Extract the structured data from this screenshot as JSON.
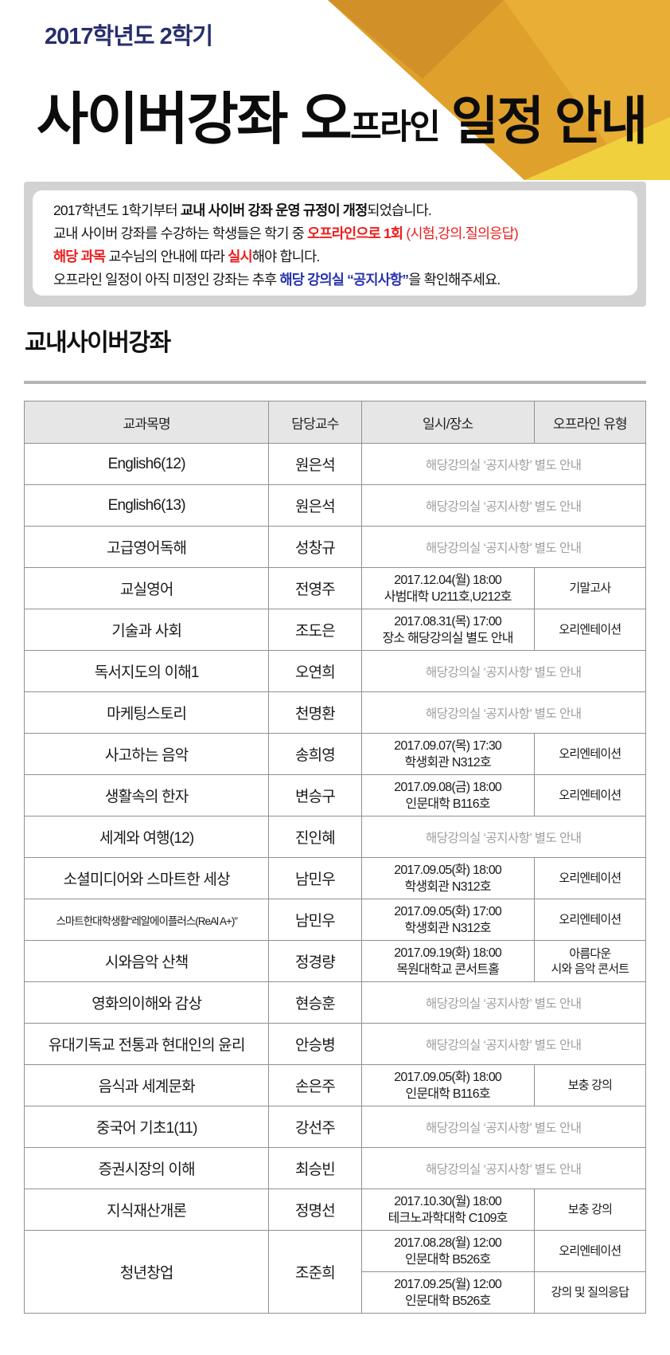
{
  "colors": {
    "navy": "#272e6d",
    "red": "#ee1c1c",
    "blue": "#2733ab",
    "gray_box": "#d2d2d2",
    "rule_gray": "#b5b5b5",
    "table_border": "#909090",
    "table_head_bg": "#e6e6e6",
    "notice_gray_text": "#9e9e9e",
    "amber_dark": "#d19128",
    "amber_mid": "#e0a02c",
    "amber": "#e8ae35",
    "yellow_bright": "#f0d03c"
  },
  "header": {
    "semester": "2017학년도 2학기",
    "title": {
      "part1": "사이버강좌 오",
      "part2": "프라인",
      "part3": " 일정 안내"
    }
  },
  "notice": {
    "lines": [
      [
        {
          "t": "2017학년도 1학기부터 ",
          "s": ""
        },
        {
          "t": "교내 사이버 강좌 운영 규정이 개정",
          "s": "b"
        },
        {
          "t": "되었습니다.",
          "s": ""
        }
      ],
      [
        {
          "t": "교내 사이버 강좌를 수강하는 학생들은 학기 중 ",
          "s": ""
        },
        {
          "t": "오프라인으로 1회",
          "s": "rb"
        },
        {
          "t": " ",
          "s": ""
        },
        {
          "t": "(시험,강의.질의응답)",
          "s": "r"
        }
      ],
      [
        {
          "t": "해당 과목",
          "s": "rb"
        },
        {
          "t": " 교수님의 안내에 따라 ",
          "s": ""
        },
        {
          "t": "실시",
          "s": "rb"
        },
        {
          "t": "해야 합니다.",
          "s": ""
        }
      ],
      [
        {
          "t": "오프라인 일정이 아직 미정인 강좌는 추후 ",
          "s": ""
        },
        {
          "t": "해당 강의실 “공지사항”",
          "s": "bb"
        },
        {
          "t": "을 확인해주세요.",
          "s": ""
        }
      ]
    ]
  },
  "section": {
    "title": "교내사이버강좌"
  },
  "table": {
    "columns": [
      "교과목명",
      "담당교수",
      "일시/장소",
      "오프라인 유형"
    ],
    "rows": [
      {
        "course": "English6(12)",
        "professor": "원은석",
        "slots": [
          {
            "notice": "해당강의실 ‘공지사항’ 별도 안내"
          }
        ]
      },
      {
        "course": "English6(13)",
        "professor": "원은석",
        "slots": [
          {
            "notice": "해당강의실 ‘공지사항’ 별도 안내"
          }
        ]
      },
      {
        "course": "고급영어독해",
        "professor": "성창규",
        "slots": [
          {
            "notice": "해당강의실 ‘공지사항’ 별도 안내"
          }
        ]
      },
      {
        "course": "교실영어",
        "professor": "전영주",
        "slots": [
          {
            "datetime": "2017.12.04(월) 18:00",
            "place": "사범대학 U211호,U212호",
            "type": "기말고사"
          }
        ]
      },
      {
        "course": "기술과 사회",
        "professor": "조도은",
        "slots": [
          {
            "datetime": "2017.08.31(목) 17:00",
            "place": "장소 해당강의실 별도 안내",
            "type": "오리엔테이션"
          }
        ]
      },
      {
        "course": "독서지도의 이해1",
        "professor": "오연희",
        "slots": [
          {
            "notice": "해당강의실 ‘공지사항’ 별도 안내"
          }
        ]
      },
      {
        "course": "마케팅스토리",
        "professor": "천명환",
        "slots": [
          {
            "notice": "해당강의실 ‘공지사항’ 별도 안내"
          }
        ]
      },
      {
        "course": "사고하는 음악",
        "professor": "송희영",
        "slots": [
          {
            "datetime": "2017.09.07(목) 17:30",
            "place": "학생회관 N312호",
            "type": "오리엔테이션"
          }
        ]
      },
      {
        "course": "생활속의 한자",
        "professor": "변승구",
        "slots": [
          {
            "datetime": "2017.09.08(금) 18:00",
            "place": "인문대학 B116호",
            "type": "오리엔테이션"
          }
        ]
      },
      {
        "course": "세계와 여행(12)",
        "professor": "진인혜",
        "slots": [
          {
            "notice": "해당강의실 ‘공지사항’ 별도 안내"
          }
        ]
      },
      {
        "course": "소셜미디어와 스마트한 세상",
        "professor": "남민우",
        "slots": [
          {
            "datetime": "2017.09.05(화) 18:00",
            "place": "학생회관 N312호",
            "type": "오리엔테이션"
          }
        ]
      },
      {
        "course": "스마트한대학생활“레알에이플러스(ReAl A+)”",
        "professor": "남민우",
        "small": true,
        "slots": [
          {
            "datetime": "2017.09.05(화) 17:00",
            "place": "학생회관 N312호",
            "type": "오리엔테이션"
          }
        ]
      },
      {
        "course": "시와음악 산책",
        "professor": "정경량",
        "slots": [
          {
            "datetime": "2017.09.19(화) 18:00",
            "place": "목원대학교 콘서트홀",
            "type": "아름다운\n시와 음악 콘서트"
          }
        ]
      },
      {
        "course": "영화의이해와 감상",
        "professor": "현승훈",
        "slots": [
          {
            "notice": "해당강의실 ‘공지사항’ 별도 안내"
          }
        ]
      },
      {
        "course": "유대기독교 전통과 현대인의 윤리",
        "professor": "안승병",
        "slots": [
          {
            "notice": "해당강의실 ‘공지사항’ 별도 안내"
          }
        ]
      },
      {
        "course": "음식과 세계문화",
        "professor": "손은주",
        "slots": [
          {
            "datetime": "2017.09.05(화) 18:00",
            "place": "인문대학 B116호",
            "type": "보충 강의"
          }
        ]
      },
      {
        "course": "중국어 기초1(11)",
        "professor": "강선주",
        "slots": [
          {
            "notice": "해당강의실 ‘공지사항’ 별도 안내"
          }
        ]
      },
      {
        "course": "증권시장의 이해",
        "professor": "최승빈",
        "slots": [
          {
            "notice": "해당강의실 ‘공지사항’ 별도 안내"
          }
        ]
      },
      {
        "course": "지식재산개론",
        "professor": "정명선",
        "slots": [
          {
            "datetime": "2017.10.30(월) 18:00",
            "place": "테크노과학대학 C109호",
            "type": "보충 강의"
          }
        ]
      },
      {
        "course": "청년창업",
        "professor": "조준희",
        "slots": [
          {
            "datetime": "2017.08.28(월) 12:00",
            "place": "인문대학 B526호",
            "type": "오리엔테이션"
          },
          {
            "datetime": "2017.09.25(월) 12:00",
            "place": "인문대학 B526호",
            "type": "강의 및 질의응답"
          }
        ]
      }
    ]
  }
}
